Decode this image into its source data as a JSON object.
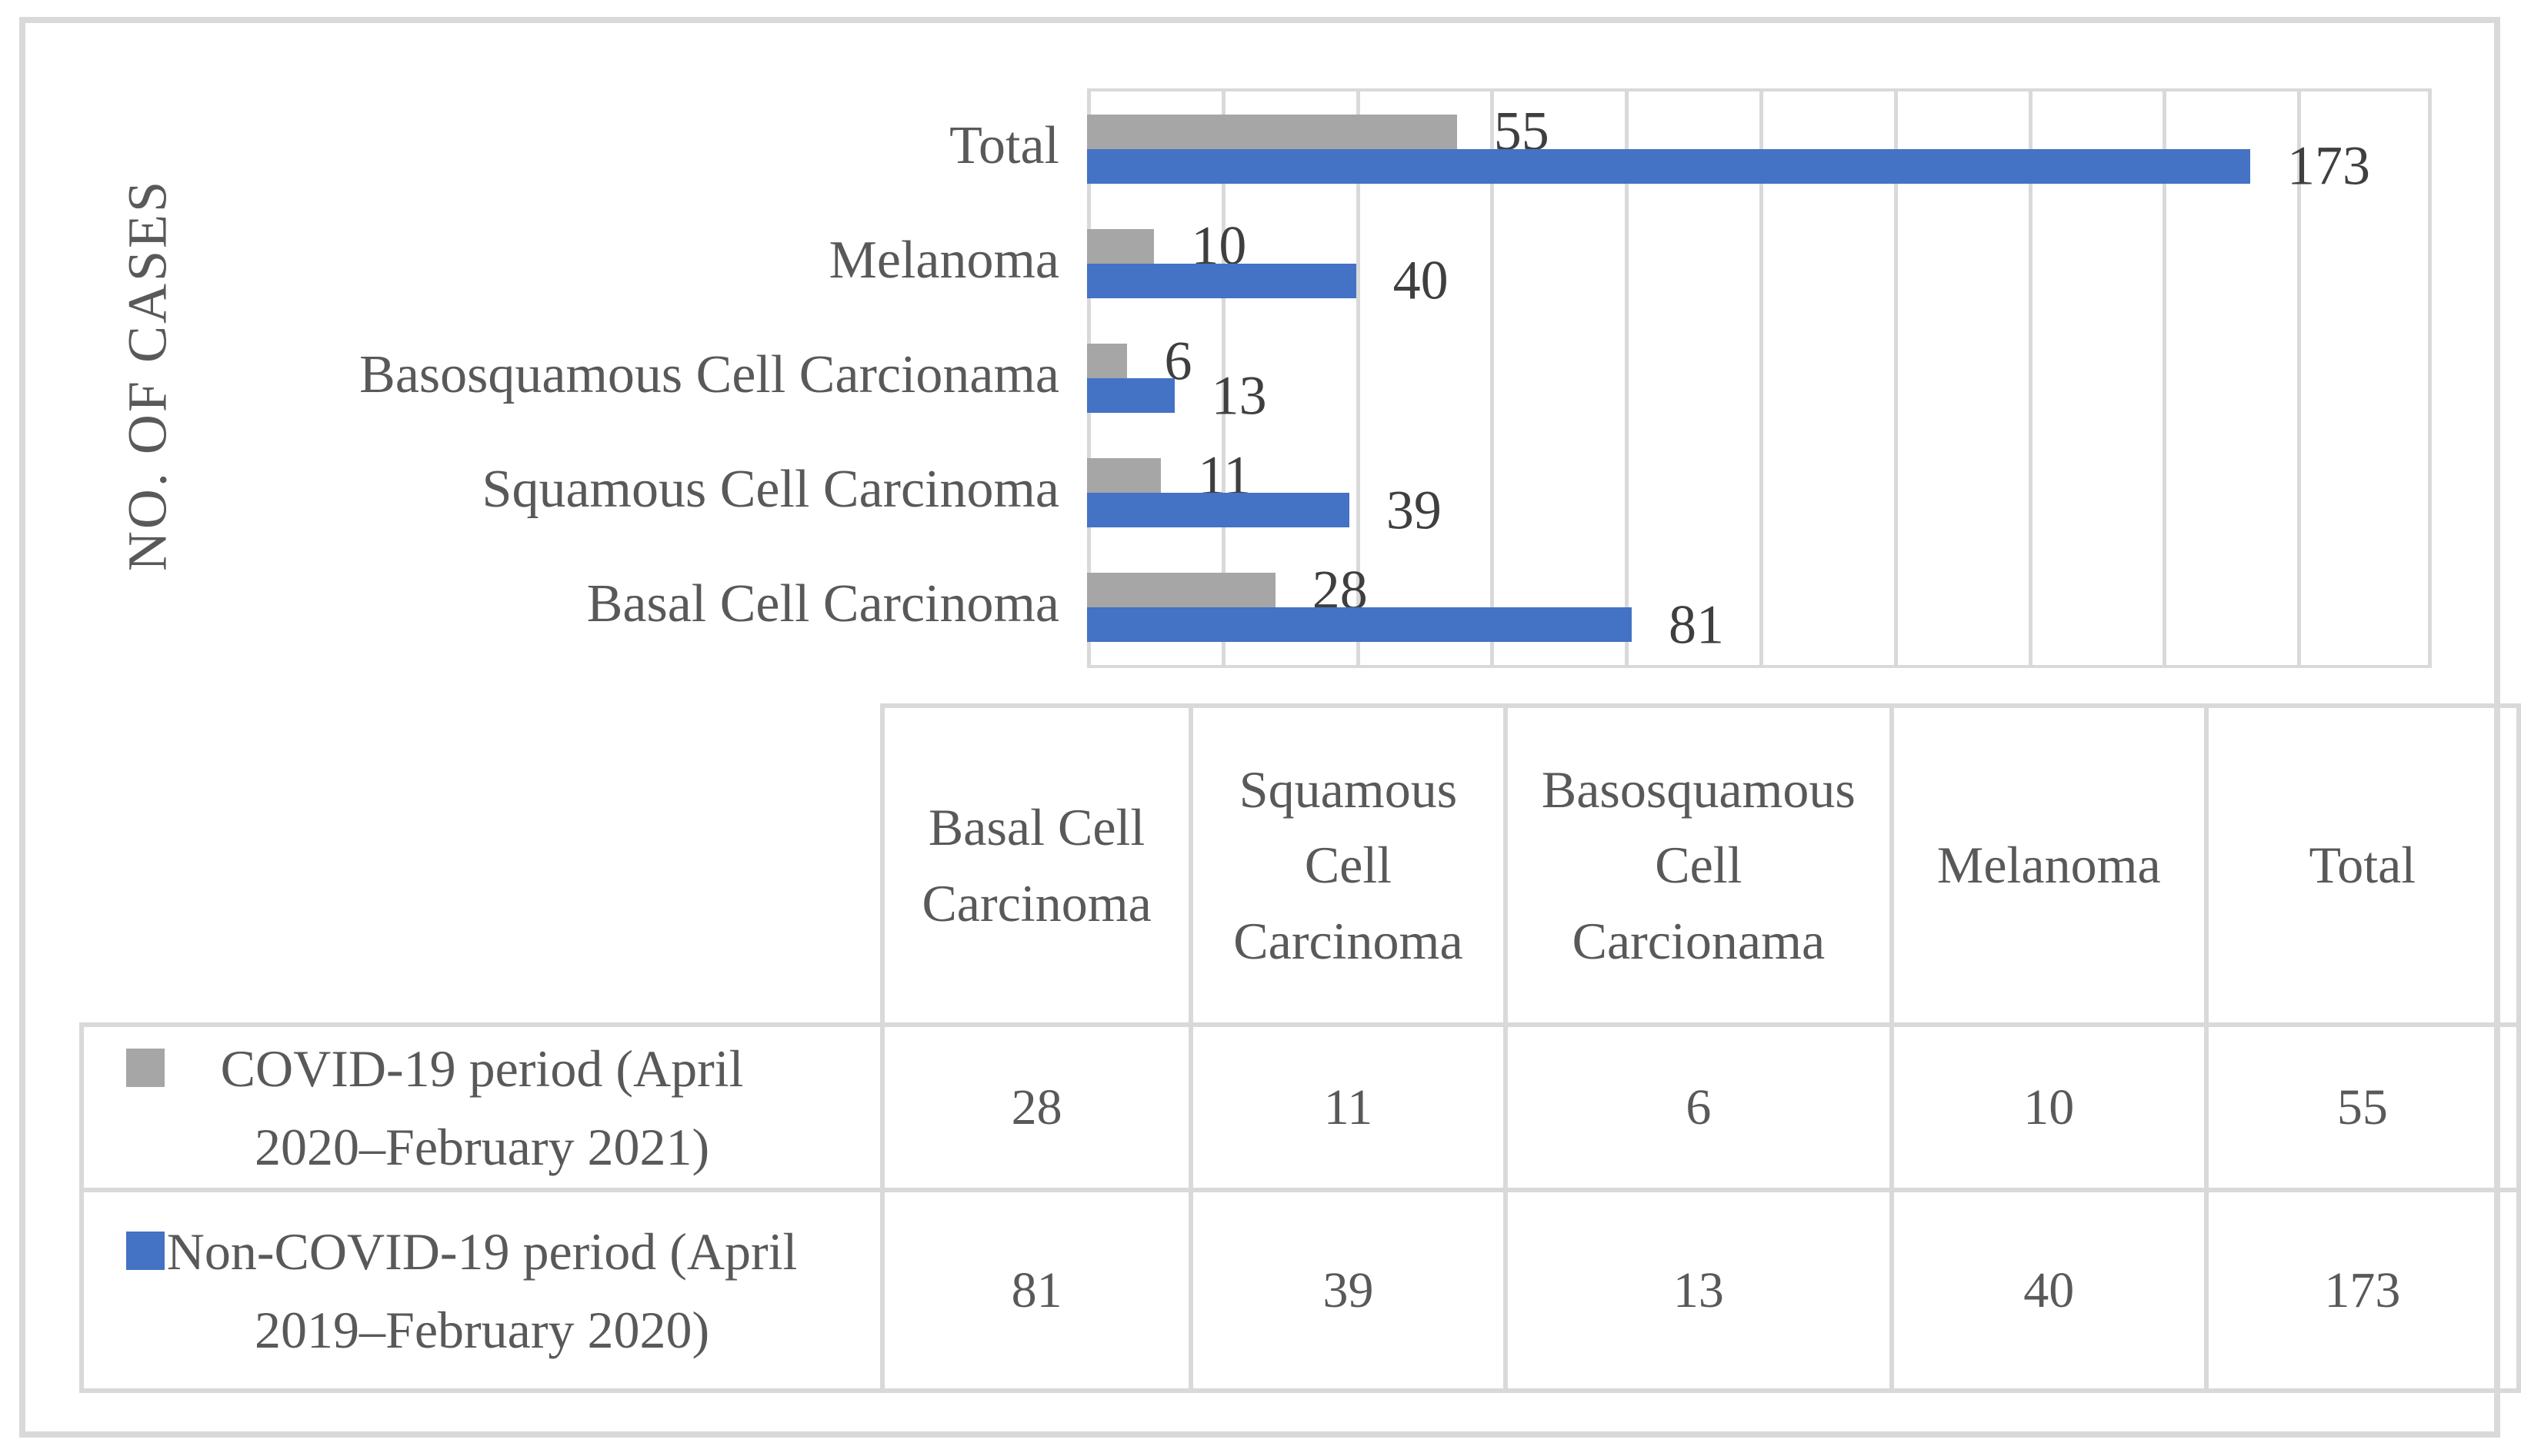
{
  "figure": {
    "background": "#FFFFFF",
    "border_color": "#D9D9D9"
  },
  "chart_data": {
    "type": "bar",
    "orientation": "horizontal",
    "title": "",
    "xlabel": "",
    "ylabel": "NO. OF CASES",
    "categories_top_to_bottom": [
      "Total",
      "Melanoma",
      "Basosquamous Cell Carcionama",
      "Squamous Cell Carcinoma",
      "Basal Cell Carcinoma"
    ],
    "series": [
      {
        "name": "COVID-19 period (April 2020–February 2021)",
        "color": "#A6A6A6",
        "values_top_to_bottom": [
          55,
          10,
          6,
          11,
          28
        ]
      },
      {
        "name": "Non-COVID-19 period (April 2019–February 2020)",
        "color": "#4472C4",
        "values_top_to_bottom": [
          173,
          40,
          13,
          39,
          81
        ]
      }
    ],
    "xlim": [
      0,
      200
    ],
    "gridline_step": 20,
    "grid": "vertical-only",
    "gridline_color": "#D9D9D9",
    "data_labels": true,
    "data_label_color": "#3F3F3F",
    "legend_position": "table-below-with-keys"
  },
  "table": {
    "columns": [
      "Basal Cell Carcinoma",
      "Squamous Cell Carcinoma",
      "Basosquamous Cell Carcionama",
      "Melanoma",
      "Total"
    ],
    "rows": [
      {
        "label": "COVID-19 period (April 2020–February 2021)",
        "key_color": "#A6A6A6",
        "values": [
          "28",
          "11",
          "6",
          "10",
          "55"
        ]
      },
      {
        "label": "Non-COVID-19 period (April 2019–February 2020)",
        "key_color": "#4472C4",
        "values": [
          "81",
          "39",
          "13",
          "40",
          "173"
        ]
      }
    ]
  }
}
